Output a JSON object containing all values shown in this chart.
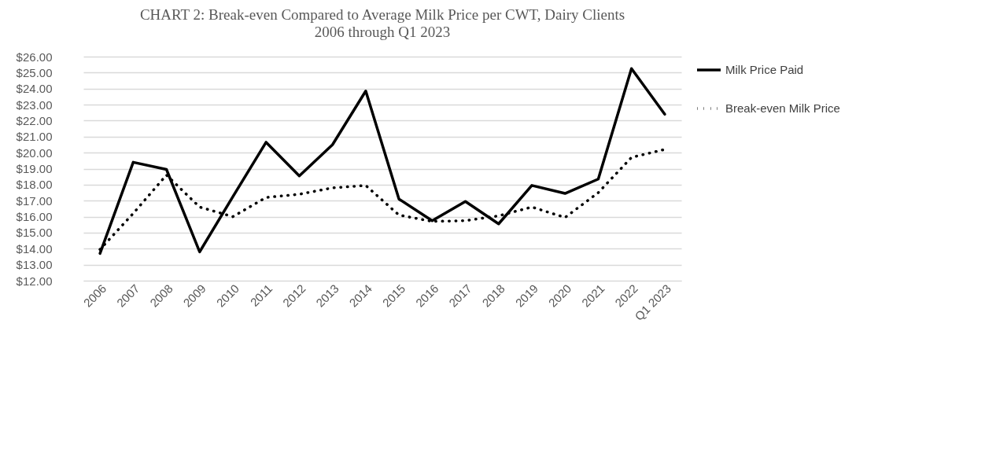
{
  "chart_data": {
    "type": "line",
    "title": "CHART 2: Break-even Compared to Average Milk Price per CWT, Dairy Clients",
    "subtitle": "2006 through Q1 2023",
    "categories": [
      "2006",
      "2007",
      "2008",
      "2009",
      "2010",
      "2011",
      "2012",
      "2013",
      "2014",
      "2015",
      "2016",
      "2017",
      "2018",
      "2019",
      "2020",
      "2021",
      "2022",
      "Q1 2023"
    ],
    "series": [
      {
        "name": "Milk Price Paid",
        "color": "#000000",
        "line_style": "solid",
        "values": [
          13.7,
          19.4,
          18.95,
          13.8,
          17.25,
          20.65,
          18.55,
          20.5,
          23.85,
          17.1,
          15.75,
          16.95,
          15.55,
          17.95,
          17.45,
          18.35,
          25.25,
          22.4
        ]
      },
      {
        "name": "Break-even Milk Price",
        "color": "#000000",
        "line_style": "dotted",
        "values": [
          13.95,
          16.2,
          18.6,
          16.6,
          16.0,
          17.2,
          17.4,
          17.8,
          17.95,
          16.1,
          15.7,
          15.75,
          16.05,
          16.6,
          15.95,
          17.5,
          19.7,
          20.2
        ]
      }
    ],
    "ylim": [
      12,
      26
    ],
    "yticks": [
      {
        "value": 12,
        "label": "$12.00"
      },
      {
        "value": 13,
        "label": "$13.00"
      },
      {
        "value": 14,
        "label": "$14.00"
      },
      {
        "value": 15,
        "label": "$15.00"
      },
      {
        "value": 16,
        "label": "$16.00"
      },
      {
        "value": 17,
        "label": "$17.00"
      },
      {
        "value": 18,
        "label": "$18.00"
      },
      {
        "value": 19,
        "label": "$19.00"
      },
      {
        "value": 20,
        "label": "$20.00"
      },
      {
        "value": 21,
        "label": "$21.00"
      },
      {
        "value": 22,
        "label": "$22.00"
      },
      {
        "value": 23,
        "label": "$23.00"
      },
      {
        "value": 24,
        "label": "$24.00"
      },
      {
        "value": 25,
        "label": "$25.00"
      },
      {
        "value": 26,
        "label": "$26.00"
      }
    ],
    "grid": "y",
    "legend": "right",
    "marker": "none"
  }
}
